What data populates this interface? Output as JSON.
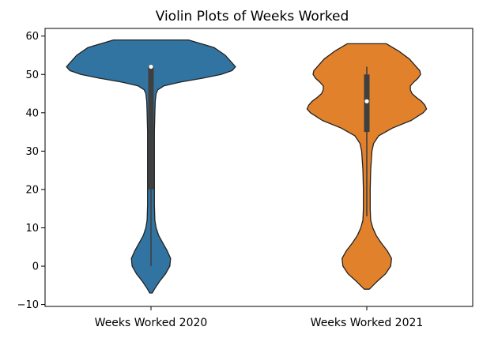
{
  "chart_data": {
    "type": "violin",
    "title": "Violin Plots of Weeks Worked",
    "xlabel": "",
    "ylabel": "",
    "ylim": [
      -10.5,
      62
    ],
    "yticks": [
      -10,
      0,
      10,
      20,
      30,
      40,
      50,
      60
    ],
    "yticklabels": [
      "−10",
      "0",
      "10",
      "20",
      "30",
      "40",
      "50",
      "60"
    ],
    "categories": [
      "Weeks Worked 2020",
      "Weeks Worked 2021"
    ],
    "grid": false,
    "series": [
      {
        "category": "Weeks Worked 2020",
        "color": "#3274a1",
        "min": 0,
        "q1": 20,
        "median": 52,
        "q3": 52,
        "max": 52,
        "kde_extent": [
          -7,
          59
        ],
        "density": [
          [
            59,
            0.44
          ],
          [
            57,
            0.74
          ],
          [
            55,
            0.87
          ],
          [
            53,
            0.95
          ],
          [
            52,
            0.99
          ],
          [
            51,
            0.95
          ],
          [
            50,
            0.82
          ],
          [
            49,
            0.6
          ],
          [
            48,
            0.34
          ],
          [
            47,
            0.15
          ],
          [
            46,
            0.08
          ],
          [
            45,
            0.06
          ],
          [
            43,
            0.05
          ],
          [
            40,
            0.045
          ],
          [
            35,
            0.04
          ],
          [
            30,
            0.04
          ],
          [
            25,
            0.04
          ],
          [
            20,
            0.04
          ],
          [
            16,
            0.04
          ],
          [
            12,
            0.045
          ],
          [
            10,
            0.06
          ],
          [
            8,
            0.09
          ],
          [
            6,
            0.14
          ],
          [
            4,
            0.19
          ],
          [
            2,
            0.23
          ],
          [
            0,
            0.22
          ],
          [
            -2,
            0.17
          ],
          [
            -4,
            0.1
          ],
          [
            -6,
            0.04
          ],
          [
            -7,
            0.015
          ]
        ]
      },
      {
        "category": "Weeks Worked 2021",
        "color": "#e1812c",
        "min": 13,
        "q1": 35,
        "median": 43,
        "q3": 50,
        "max": 52,
        "kde_extent": [
          -6,
          58
        ],
        "density": [
          [
            58,
            0.23
          ],
          [
            56,
            0.38
          ],
          [
            54,
            0.5
          ],
          [
            52,
            0.58
          ],
          [
            51,
            0.62
          ],
          [
            50,
            0.63
          ],
          [
            49,
            0.6
          ],
          [
            48,
            0.55
          ],
          [
            47,
            0.51
          ],
          [
            46,
            0.51
          ],
          [
            45,
            0.53
          ],
          [
            44,
            0.58
          ],
          [
            43,
            0.64
          ],
          [
            42,
            0.68
          ],
          [
            41,
            0.7
          ],
          [
            40,
            0.66
          ],
          [
            38,
            0.52
          ],
          [
            36,
            0.3
          ],
          [
            34,
            0.14
          ],
          [
            32,
            0.08
          ],
          [
            30,
            0.06
          ],
          [
            25,
            0.045
          ],
          [
            20,
            0.04
          ],
          [
            15,
            0.04
          ],
          [
            12,
            0.045
          ],
          [
            10,
            0.07
          ],
          [
            8,
            0.11
          ],
          [
            6,
            0.17
          ],
          [
            4,
            0.24
          ],
          [
            2,
            0.29
          ],
          [
            0,
            0.28
          ],
          [
            -2,
            0.22
          ],
          [
            -4,
            0.12
          ],
          [
            -6,
            0.03
          ]
        ]
      }
    ]
  }
}
